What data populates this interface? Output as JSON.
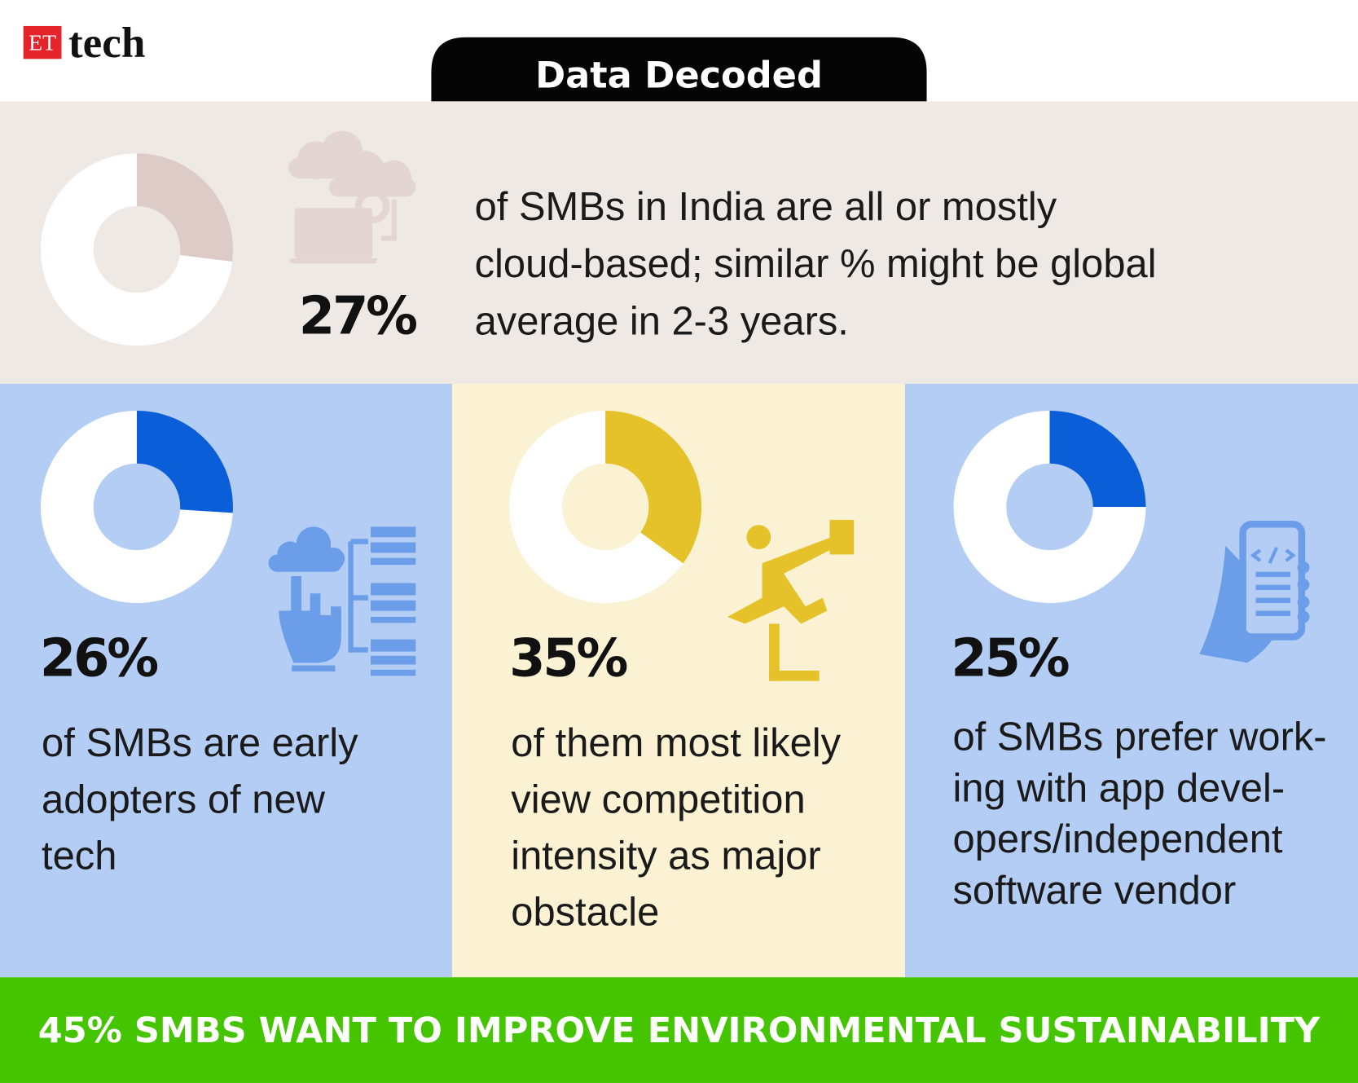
{
  "header": {
    "logo_badge": "ET",
    "logo_text": "tech",
    "title": "Data Decoded"
  },
  "panels": [
    {
      "value": 27,
      "value_label": "27%",
      "lines": [
        "of SMBs in India are all or mostly",
        "cloud-based; similar % might be global",
        "average in 2-3 years."
      ]
    },
    {
      "value": 26,
      "value_label": "26%",
      "lines": [
        "of SMBs are early",
        "adopters of new",
        "tech"
      ]
    },
    {
      "value": 35,
      "value_label": "35%",
      "lines": [
        "of them most likely",
        "view competition",
        "intensity as major",
        "obstacle"
      ]
    },
    {
      "value": 25,
      "value_label": "25%",
      "lines": [
        "of SMBs prefer work-",
        "ing with app devel-",
        "opers/independent",
        "software vendor"
      ]
    }
  ],
  "footer": "45% SMBS WANT TO IMPROVE ENVIRONMENTAL SUSTAINABILITY"
}
